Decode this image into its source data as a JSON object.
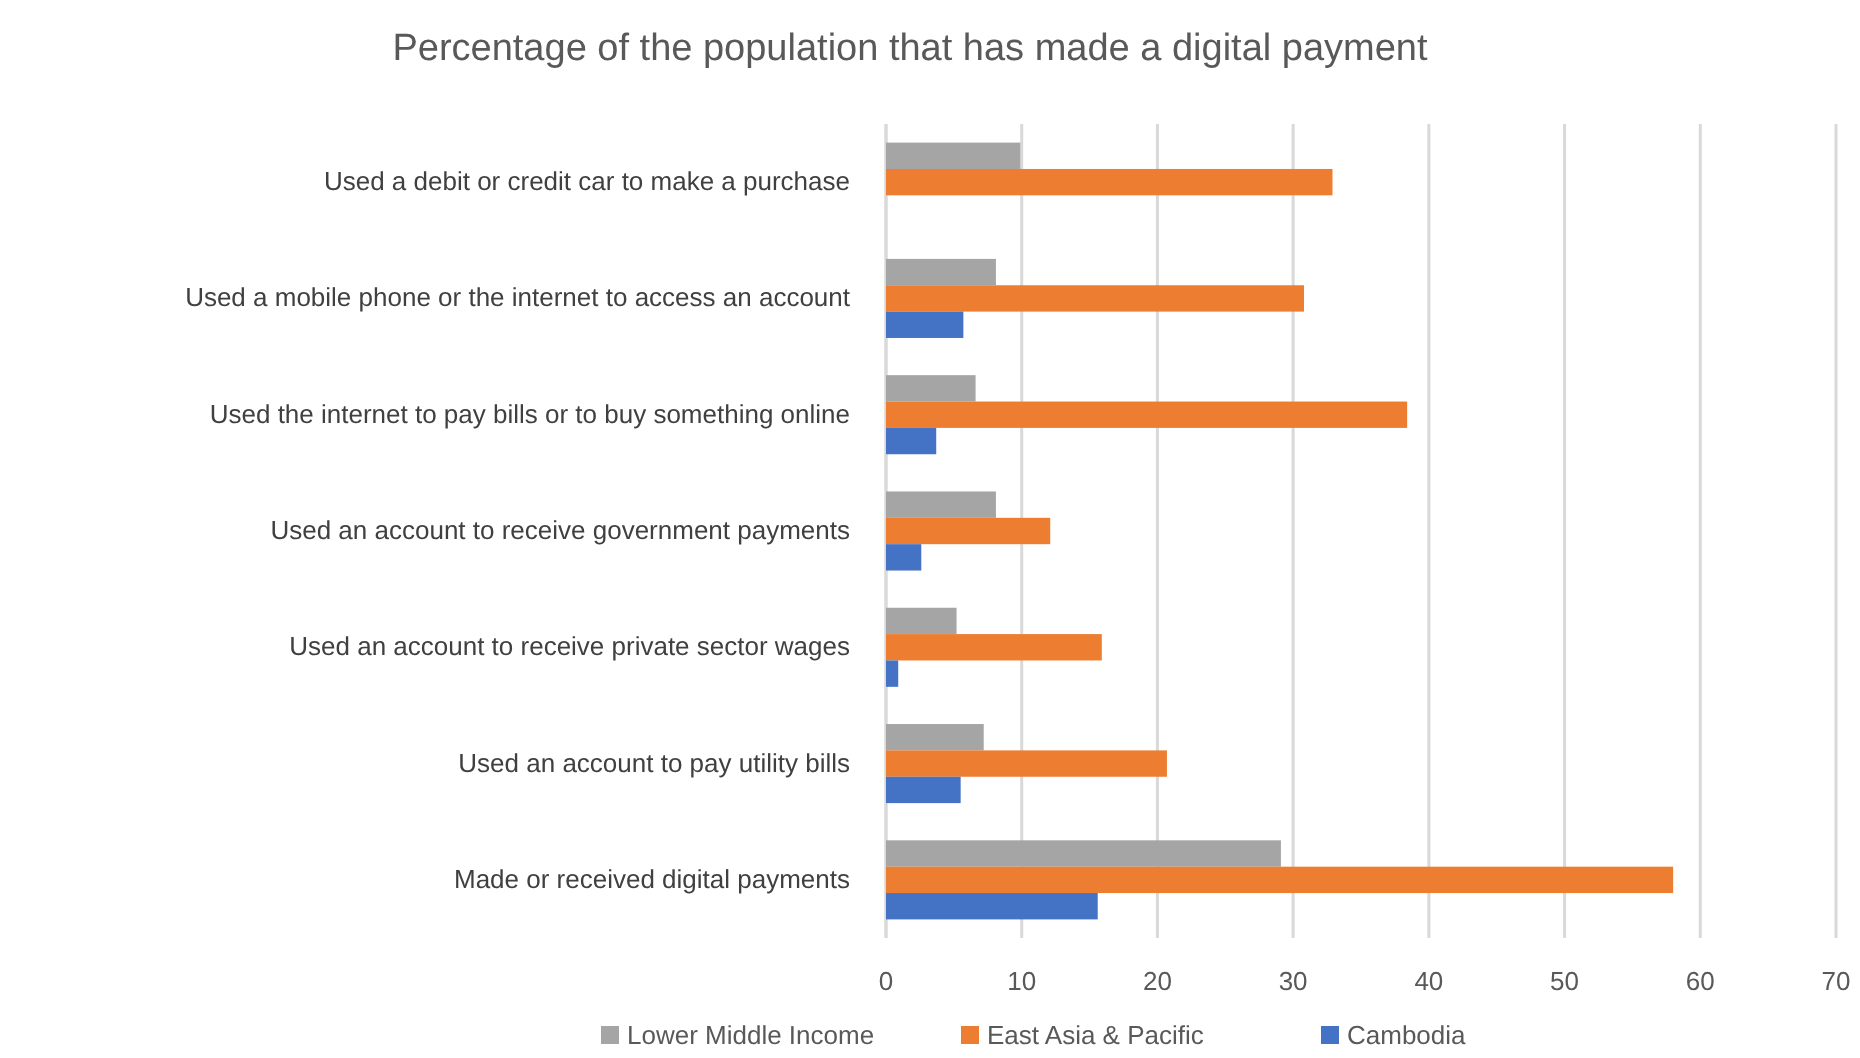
{
  "chart_data": {
    "type": "bar",
    "orientation": "horizontal",
    "title": "Percentage of the population that has made a digital payment",
    "categories": [
      "Used a debit or credit car to make a purchase",
      "Used a mobile phone or the internet to access an account",
      "Used the internet to pay bills or to buy something online",
      "Used an account to receive government payments",
      "Used an account to receive private sector wages",
      "Used an account to pay utility bills",
      "Made or received digital payments"
    ],
    "series": [
      {
        "name": "Lower Middle Income",
        "color": "#a5a5a5",
        "values": [
          9.9,
          8.1,
          6.6,
          8.1,
          5.2,
          7.2,
          29.1
        ]
      },
      {
        "name": "East Asia & Pacific",
        "color": "#ed7d31",
        "values": [
          32.9,
          30.8,
          38.4,
          12.1,
          15.9,
          20.7,
          58.0
        ]
      },
      {
        "name": "Cambodia",
        "color": "#4472c4",
        "values": [
          null,
          5.7,
          3.7,
          2.6,
          0.9,
          5.5,
          15.6
        ]
      }
    ],
    "xlim": [
      0,
      70
    ],
    "xticks": [
      0,
      10,
      20,
      30,
      40,
      50,
      60,
      70
    ],
    "grid": "x",
    "legend": "bottom"
  }
}
